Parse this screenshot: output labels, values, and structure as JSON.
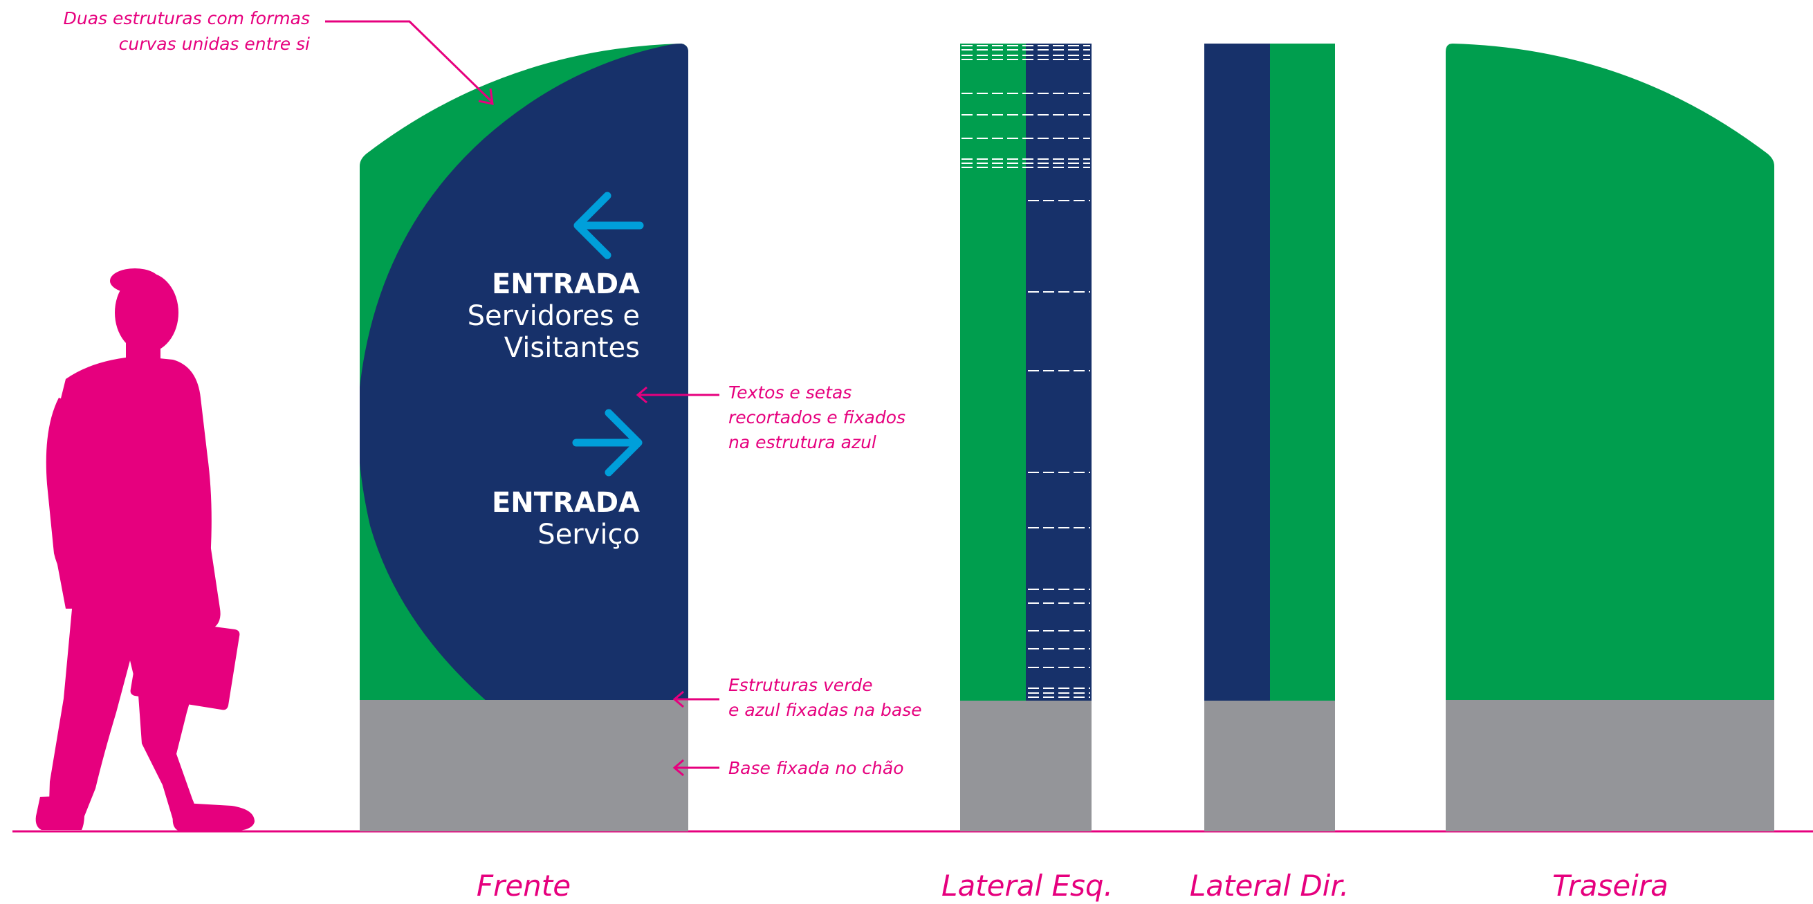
{
  "colors": {
    "green": "#009e4e",
    "navy": "#17316a",
    "gray": "#949599",
    "magenta": "#e6007e",
    "arrow_blue": "#009fda",
    "white": "#ffffff"
  },
  "front_sign": {
    "entry_1": {
      "title": "ENTRADA",
      "line_1": "Servidores e",
      "line_2": "Visitantes",
      "arrow": "arrow-left-icon"
    },
    "entry_2": {
      "title": "ENTRADA",
      "line_1": "Serviço",
      "arrow": "arrow-right-icon"
    }
  },
  "annotations": {
    "curves": {
      "line_1": "Duas estruturas com formas",
      "line_2": "curvas unidas entre si"
    },
    "texts": {
      "line_1": "Textos e setas",
      "line_2": "recortados e fixados",
      "line_3": "na estrutura azul"
    },
    "structures": {
      "line_1": "Estruturas verde",
      "line_2": "e azul fixadas na base"
    },
    "base": {
      "line_1": "Base fixada no chão"
    }
  },
  "view_labels": {
    "front": "Frente",
    "left": "Lateral Esq.",
    "right": "Lateral Dir.",
    "back": "Traseira"
  },
  "figure": {
    "icon": "person-silhouette-icon"
  }
}
